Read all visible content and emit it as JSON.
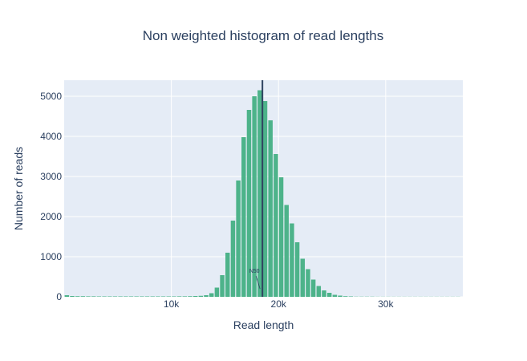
{
  "chart_data": {
    "type": "bar",
    "title": "Non weighted histogram of read lengths",
    "xlabel": "Read length",
    "ylabel": "Number of reads",
    "xlim": [
      0,
      37200
    ],
    "ylim": [
      0,
      5400
    ],
    "x_ticks": [
      10000,
      20000,
      30000
    ],
    "x_tick_labels": [
      "10k",
      "20k",
      "30k"
    ],
    "y_ticks": [
      0,
      1000,
      2000,
      3000,
      4000,
      5000
    ],
    "y_tick_labels": [
      "0",
      "1000",
      "2000",
      "3000",
      "4000",
      "5000"
    ],
    "grid": true,
    "bin_width": 500,
    "bin_starts": [
      0,
      500,
      1000,
      1500,
      2000,
      2500,
      3000,
      3500,
      4000,
      4500,
      5000,
      5500,
      6000,
      6500,
      7000,
      7500,
      8000,
      8500,
      9000,
      9500,
      10000,
      10500,
      11000,
      11500,
      12000,
      12500,
      13000,
      13500,
      14000,
      14500,
      15000,
      15500,
      16000,
      16500,
      17000,
      17500,
      18000,
      18500,
      19000,
      19500,
      20000,
      20500,
      21000,
      21500,
      22000,
      22500,
      23000,
      23500,
      24000,
      24500,
      25000,
      25500,
      26000,
      26500,
      27000,
      27500,
      28000,
      28500,
      29000,
      29500,
      30000,
      30500,
      31000,
      31500,
      32000,
      32500,
      33000,
      33500,
      34000,
      34500,
      35000,
      35500,
      36000,
      36500
    ],
    "values": [
      40,
      20,
      15,
      15,
      12,
      12,
      10,
      10,
      10,
      10,
      10,
      10,
      10,
      10,
      10,
      10,
      10,
      10,
      10,
      10,
      10,
      12,
      12,
      15,
      20,
      25,
      40,
      90,
      230,
      540,
      1100,
      1900,
      2900,
      3980,
      4660,
      5000,
      5150,
      4880,
      4400,
      3560,
      2980,
      2290,
      1830,
      1360,
      950,
      690,
      430,
      270,
      160,
      100,
      50,
      30,
      15,
      10,
      5,
      5,
      5,
      5,
      3,
      3,
      3,
      3,
      3,
      3,
      3,
      3,
      3,
      3,
      3,
      3,
      3,
      3,
      3,
      3
    ],
    "bar_color": "#4db38a",
    "vline": {
      "x": 18500,
      "label": "N50",
      "color": "#2f4360"
    }
  }
}
